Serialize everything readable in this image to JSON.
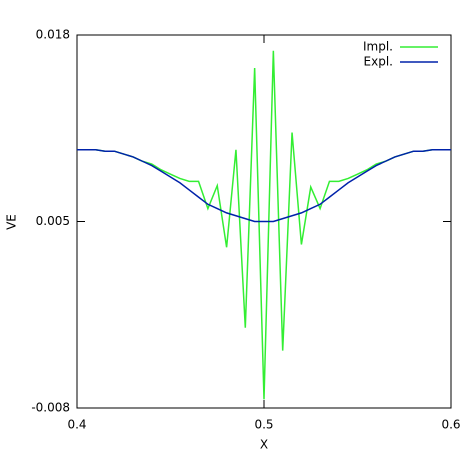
{
  "chart_data": {
    "type": "line",
    "x_label": "X",
    "y_label": "VE",
    "x": [
      0.4,
      0.405,
      0.41,
      0.415,
      0.42,
      0.425,
      0.43,
      0.435,
      0.44,
      0.445,
      0.45,
      0.455,
      0.46,
      0.465,
      0.47,
      0.475,
      0.48,
      0.485,
      0.49,
      0.495,
      0.5,
      0.505,
      0.51,
      0.515,
      0.52,
      0.525,
      0.53,
      0.535,
      0.54,
      0.545,
      0.55,
      0.555,
      0.56,
      0.565,
      0.57,
      0.575,
      0.58,
      0.585,
      0.59,
      0.595,
      0.6
    ],
    "series": [
      {
        "name": "Impl.",
        "color": "#33ee33",
        "values": [
          0.01,
          0.01,
          0.01,
          0.0099,
          0.0099,
          0.0097,
          0.0095,
          0.0092,
          0.009,
          0.0086,
          0.0083,
          0.008,
          0.0078,
          0.0078,
          0.0059,
          0.0075,
          0.0032,
          0.01,
          -0.0024,
          0.0157,
          -0.0074,
          0.0169,
          -0.004,
          0.0112,
          0.0034,
          0.0074,
          0.0059,
          0.0078,
          0.0078,
          0.008,
          0.0083,
          0.0086,
          0.009,
          0.0092,
          0.0095,
          0.0097,
          0.0099,
          0.0099,
          0.01,
          0.01,
          0.01
        ]
      },
      {
        "name": "Expl.",
        "color": "#0022aa",
        "values": [
          0.01,
          0.01,
          0.01,
          0.0099,
          0.0099,
          0.0097,
          0.0095,
          0.0092,
          0.0089,
          0.0085,
          0.0081,
          0.0077,
          0.0072,
          0.0067,
          0.0062,
          0.0059,
          0.0056,
          0.0054,
          0.0052,
          0.005,
          0.005,
          0.005,
          0.0052,
          0.0054,
          0.0056,
          0.0059,
          0.0062,
          0.0067,
          0.0072,
          0.0077,
          0.0081,
          0.0085,
          0.0089,
          0.0092,
          0.0095,
          0.0097,
          0.0099,
          0.0099,
          0.01,
          0.01,
          0.01
        ]
      }
    ],
    "xlim": [
      0.4,
      0.6
    ],
    "xticks": [
      0.4,
      0.5,
      0.6
    ],
    "ylim": [
      -0.008,
      0.018
    ],
    "yticks": [
      -0.008,
      0.005,
      0.018
    ],
    "grid": false,
    "legend": "top-right"
  }
}
